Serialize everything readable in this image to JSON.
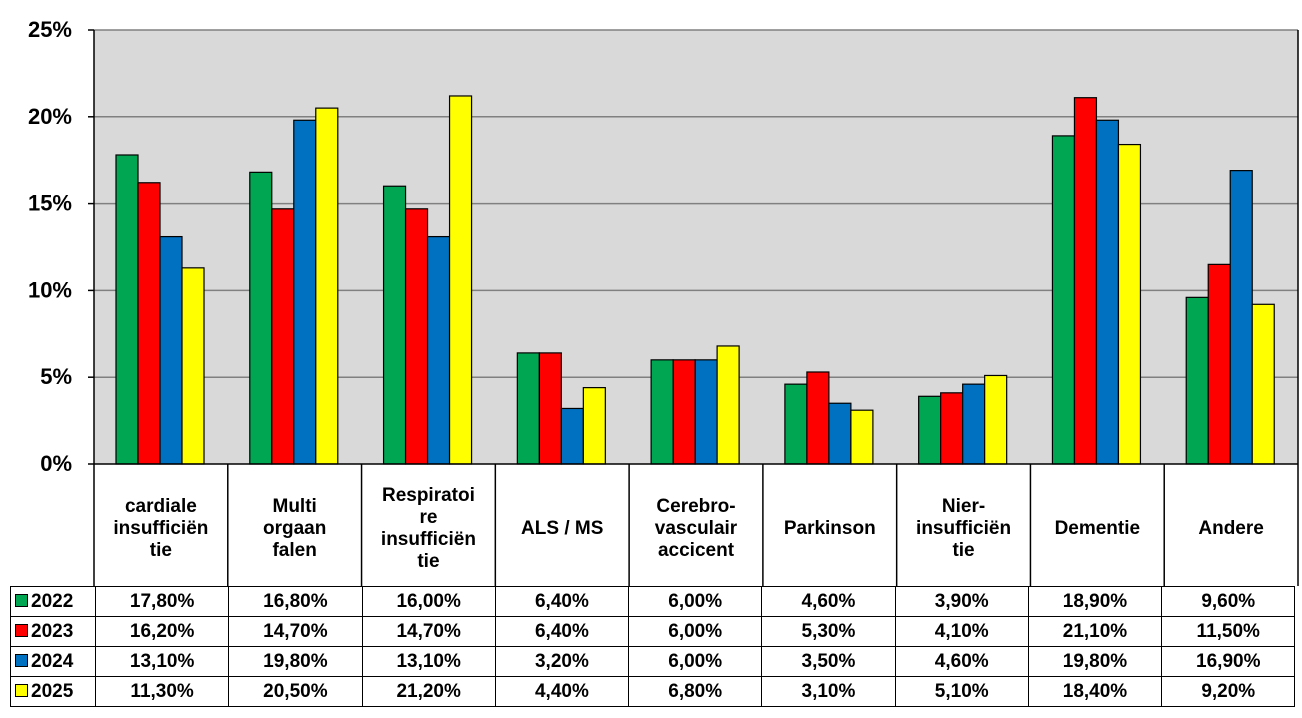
{
  "chart_data": {
    "type": "bar",
    "title": "",
    "xlabel": "",
    "ylabel": "",
    "ylim": [
      0,
      25
    ],
    "y_ticks": [
      "0%",
      "5%",
      "10%",
      "15%",
      "20%",
      "25%"
    ],
    "y_tick_values": [
      0,
      5,
      10,
      15,
      20,
      25
    ],
    "grid": true,
    "legend": "data-table-left",
    "background_color": "#d9d9d9",
    "categories": [
      "cardiale insufficiën tie",
      "Multi orgaan falen",
      "Respiratoi re insufficiën tie",
      "ALS / MS",
      "Cerebro- vasculair accicent",
      "Parkinson",
      "Nier- insufficiën tie",
      "Dementie",
      "Andere"
    ],
    "category_lines": [
      [
        "cardiale",
        "insufficiën",
        "tie"
      ],
      [
        "Multi",
        "orgaan",
        "falen"
      ],
      [
        "Respiratoi",
        "re",
        "insufficiën",
        "tie"
      ],
      [
        "ALS / MS"
      ],
      [
        "Cerebro-",
        "vasculair",
        "accicent"
      ],
      [
        "Parkinson"
      ],
      [
        "Nier-",
        "insufficiën",
        "tie"
      ],
      [
        "Dementie"
      ],
      [
        "Andere"
      ]
    ],
    "series": [
      {
        "name": "2022",
        "color": "#00a651",
        "values": [
          17.8,
          16.8,
          16.0,
          6.4,
          6.0,
          4.6,
          3.9,
          18.9,
          9.6
        ],
        "labels": [
          "17,80%",
          "16,80%",
          "16,00%",
          "6,40%",
          "6,00%",
          "4,60%",
          "3,90%",
          "18,90%",
          "9,60%"
        ]
      },
      {
        "name": "2023",
        "color": "#ff0000",
        "values": [
          16.2,
          14.7,
          14.7,
          6.4,
          6.0,
          5.3,
          4.1,
          21.1,
          11.5
        ],
        "labels": [
          "16,20%",
          "14,70%",
          "14,70%",
          "6,40%",
          "6,00%",
          "5,30%",
          "4,10%",
          "21,10%",
          "11,50%"
        ]
      },
      {
        "name": "2024",
        "color": "#0070c0",
        "values": [
          13.1,
          19.8,
          13.1,
          3.2,
          6.0,
          3.5,
          4.6,
          19.8,
          16.9
        ],
        "labels": [
          "13,10%",
          "19,80%",
          "13,10%",
          "3,20%",
          "6,00%",
          "3,50%",
          "4,60%",
          "19,80%",
          "16,90%"
        ]
      },
      {
        "name": "2025",
        "color": "#ffff00",
        "values": [
          11.3,
          20.5,
          21.2,
          4.4,
          6.8,
          3.1,
          5.1,
          18.4,
          9.2
        ],
        "labels": [
          "11,30%",
          "20,50%",
          "21,20%",
          "4,40%",
          "6,80%",
          "3,10%",
          "5,10%",
          "18,40%",
          "9,20%"
        ]
      }
    ]
  }
}
